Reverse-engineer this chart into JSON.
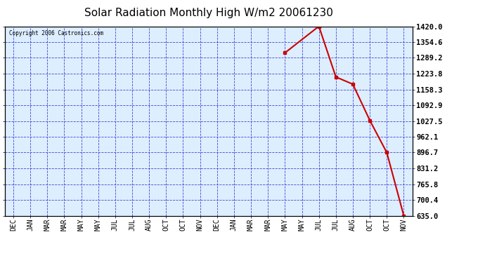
{
  "title": "Solar Radiation Monthly High W/m2 20061230",
  "copyright": "Copyright 2006 Castronics.com",
  "x_labels": [
    "DEC",
    "JAN",
    "MAR",
    "MAR",
    "MAY",
    "MAY",
    "JUL",
    "JUL",
    "AUG",
    "OCT",
    "OCT",
    "NOV",
    "DEC",
    "JAN",
    "MAR",
    "MAR",
    "MAY",
    "MAY",
    "JUL",
    "JUL",
    "AUG",
    "OCT",
    "OCT",
    "NOV"
  ],
  "y_ticks": [
    635.0,
    700.4,
    765.8,
    831.2,
    896.7,
    962.1,
    1027.5,
    1092.9,
    1158.3,
    1223.8,
    1289.2,
    1354.6,
    1420.0
  ],
  "y_min": 635.0,
  "y_max": 1420.0,
  "data_x_indices": [
    16,
    18,
    19,
    20,
    21,
    22,
    23
  ],
  "data_y_values": [
    1310.0,
    1420.0,
    1210.0,
    1180.0,
    1030.0,
    896.7,
    635.0
  ],
  "line_color": "#cc0000",
  "marker_color": "#cc0000",
  "bg_color": "#ffffff",
  "plot_bg_color": "#ddeeff",
  "grid_color": "#3333cc",
  "axis_color": "#000000",
  "title_fontsize": 11,
  "label_fontsize": 7,
  "tick_fontsize": 7.5
}
